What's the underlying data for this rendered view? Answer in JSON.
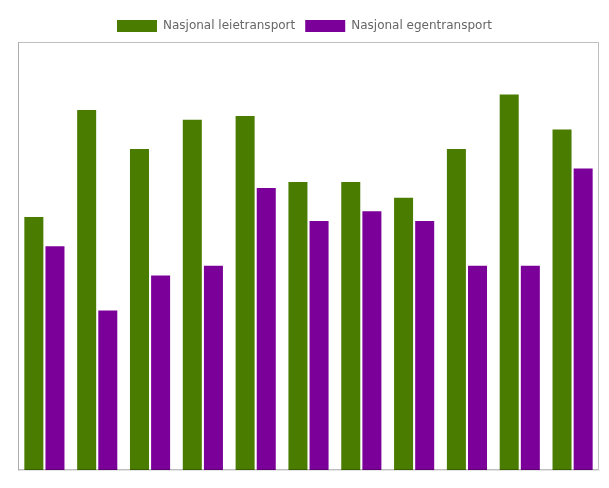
{
  "chart_data": {
    "type": "bar",
    "categories": [
      null,
      null,
      null,
      null,
      null,
      null,
      null,
      null,
      null,
      null,
      null
    ],
    "series": [
      {
        "name": "Nasjonal leietransport",
        "color": "#4a7c00",
        "values": [
          130,
          185,
          165,
          180,
          182,
          148,
          148,
          140,
          165,
          193,
          175
        ]
      },
      {
        "name": "Nasjonal egentransport",
        "color": "#7b0099",
        "values": [
          115,
          82,
          100,
          105,
          145,
          128,
          133,
          128,
          105,
          105,
          155
        ]
      }
    ],
    "ylim": [
      0,
      220
    ],
    "grid": false,
    "legend": "top",
    "tick_labels": false
  }
}
